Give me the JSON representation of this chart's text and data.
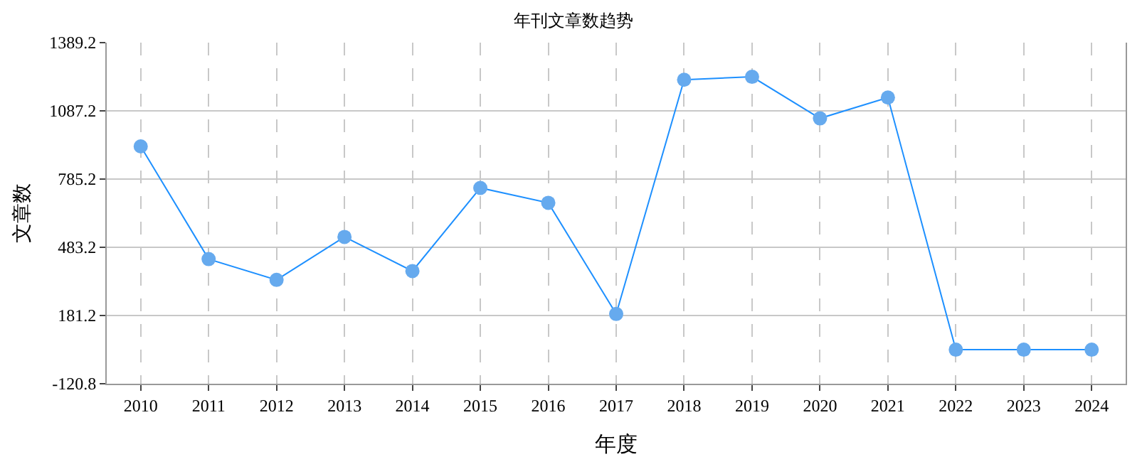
{
  "chart_data": {
    "type": "line",
    "title": "年刊文章数趋势",
    "xlabel": "年度",
    "ylabel": "文章数",
    "categories": [
      "2010",
      "2011",
      "2012",
      "2013",
      "2014",
      "2015",
      "2016",
      "2017",
      "2018",
      "2019",
      "2020",
      "2021",
      "2022",
      "2023",
      "2024"
    ],
    "series": [
      {
        "color": "#1e90ff",
        "values": [
          930,
          431,
          339,
          529,
          378,
          746,
          680,
          188,
          1225,
          1238,
          1054,
          1146,
          30,
          30,
          30
        ]
      }
    ],
    "ylim": [
      -120.8,
      1389.2
    ],
    "yticks": [
      -120.8,
      181.2,
      483.2,
      785.2,
      1087.2,
      1389.2
    ],
    "grid": true,
    "marker": "circle",
    "line_style": "solid",
    "legend": false
  }
}
